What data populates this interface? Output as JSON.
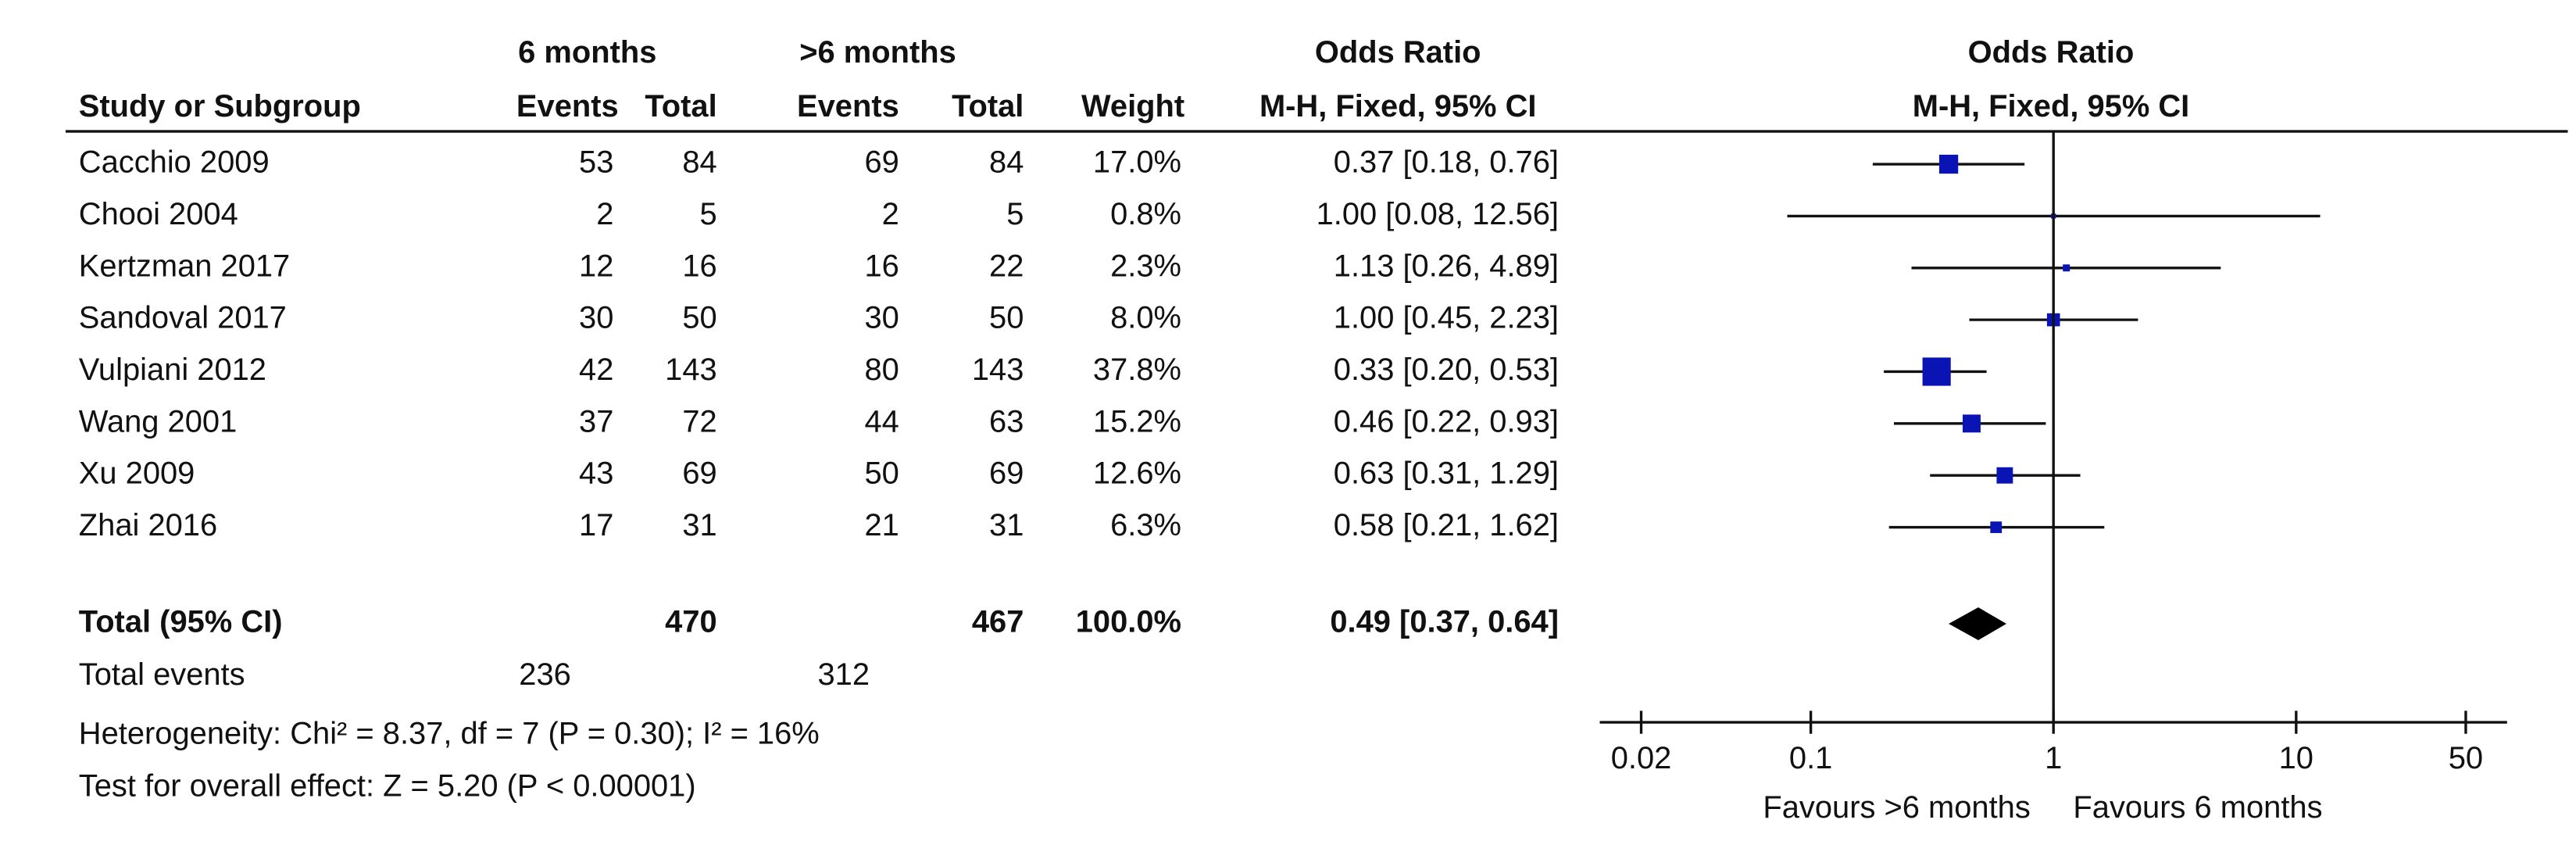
{
  "chart_data": {
    "type": "forest",
    "group_headers": [
      "6 months",
      ">6 months",
      "Odds Ratio",
      "Odds Ratio"
    ],
    "column_headers": [
      "Study or Subgroup",
      "Events",
      "Total",
      "Events",
      "Total",
      "Weight",
      "M-H, Fixed, 95% CI",
      "M-H, Fixed, 95% CI"
    ],
    "studies": [
      "Cacchio 2009",
      "Chooi 2004",
      "Kertzman 2017",
      "Sandoval 2017",
      "Vulpiani 2012",
      "Wang 2001",
      "Xu 2009",
      "Zhai 2016"
    ],
    "events_1": [
      53,
      2,
      12,
      30,
      42,
      37,
      43,
      17
    ],
    "total_1": [
      84,
      5,
      16,
      50,
      143,
      72,
      69,
      31
    ],
    "events_2": [
      69,
      2,
      16,
      30,
      80,
      44,
      50,
      21
    ],
    "total_2": [
      84,
      5,
      22,
      50,
      143,
      63,
      69,
      31
    ],
    "weights": [
      17.0,
      0.8,
      2.3,
      8.0,
      37.8,
      15.2,
      12.6,
      6.3
    ],
    "weight_labels": [
      "17.0%",
      "0.8%",
      "2.3%",
      "8.0%",
      "37.8%",
      "15.2%",
      "12.6%",
      "6.3%"
    ],
    "values": [
      0.37,
      1.0,
      1.13,
      1.0,
      0.33,
      0.46,
      0.63,
      0.58
    ],
    "lower": [
      0.18,
      0.08,
      0.26,
      0.45,
      0.2,
      0.22,
      0.31,
      0.21
    ],
    "upper": [
      0.76,
      12.56,
      4.89,
      2.23,
      0.53,
      0.93,
      1.29,
      1.62
    ],
    "value_labels": [
      "0.37 [0.18, 0.76]",
      "1.00 [0.08, 12.56]",
      "1.13 [0.26, 4.89]",
      "1.00 [0.45, 2.23]",
      "0.33 [0.20, 0.53]",
      "0.46 [0.22, 0.93]",
      "0.63 [0.31, 1.29]",
      "0.58 [0.21, 1.62]"
    ],
    "color": "#0a14b4",
    "total": {
      "label": "Total (95% CI)",
      "total_1": 470,
      "total_2": 467,
      "weight_label": "100.0%",
      "value": 0.49,
      "lower": 0.37,
      "upper": 0.64,
      "value_label": "0.49 [0.37, 0.64]"
    },
    "total_events": {
      "label": "Total events",
      "events_1": 236,
      "events_2": 312
    },
    "heterogeneity": "Heterogeneity: Chi² = 8.37, df = 7 (P = 0.30); I² = 16%",
    "overall_effect": "Test for overall effect: Z = 5.20 (P < 0.00001)",
    "xscale": "log",
    "xlim": [
      0.0135,
      74
    ],
    "xticks": [
      0.02,
      0.1,
      1,
      10,
      50
    ],
    "xlabel_left": "Favours >6 months",
    "xlabel_right": "Favours 6 months"
  }
}
